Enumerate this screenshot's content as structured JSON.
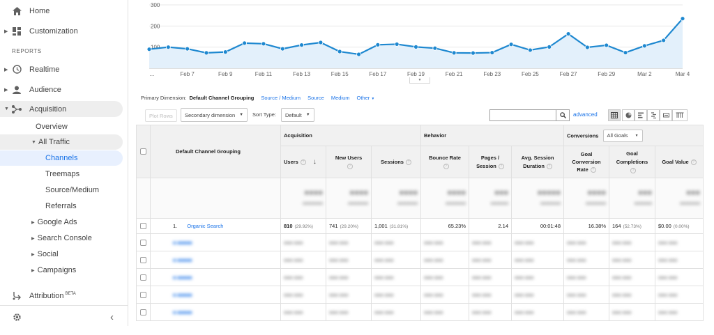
{
  "sidebar": {
    "home": "Home",
    "customization": "Customization",
    "reports_header": "REPORTS",
    "realtime": "Realtime",
    "audience": "Audience",
    "acquisition": "Acquisition",
    "overview": "Overview",
    "all_traffic": "All Traffic",
    "channels": "Channels",
    "treemaps": "Treemaps",
    "source_medium": "Source/Medium",
    "referrals": "Referrals",
    "google_ads": "Google Ads",
    "search_console": "Search Console",
    "social": "Social",
    "campaigns": "Campaigns",
    "attribution": "Attribution",
    "attribution_badge": "BETA",
    "collapse": "‹"
  },
  "chart_data": {
    "type": "area",
    "ylim": [
      0,
      300
    ],
    "yticks": [
      "300",
      "200",
      "100"
    ],
    "y_values": [
      90,
      100,
      92,
      73,
      77,
      119,
      116,
      92,
      110,
      122,
      79,
      66,
      111,
      114,
      101,
      95,
      73,
      72,
      74,
      113,
      86,
      101,
      163,
      99,
      109,
      74,
      106,
      132,
      235
    ],
    "xticks": [
      "…",
      "Feb 7",
      "Feb 9",
      "Feb 11",
      "Feb 13",
      "Feb 15",
      "Feb 17",
      "Feb 19",
      "Feb 21",
      "Feb 23",
      "Feb 25",
      "Feb 27",
      "Feb 29",
      "Mar 2",
      "Mar 4"
    ],
    "line_color": "#1e88d0",
    "fill_color": "#e3f0fb",
    "grid": true
  },
  "dimension": {
    "label": "Primary Dimension:",
    "current": "Default Channel Grouping",
    "options": [
      "Source / Medium",
      "Source",
      "Medium",
      "Other"
    ]
  },
  "toolbar": {
    "plot_rows": "Plot Rows",
    "secondary": "Secondary dimension",
    "sort_label": "Sort Type:",
    "sort_value": "Default",
    "advanced": "advanced"
  },
  "table": {
    "col_dimension": "Default Channel Grouping",
    "group_acquisition": "Acquisition",
    "group_behavior": "Behavior",
    "group_conversions": "Conversions",
    "goal_select": "All Goals",
    "cols": {
      "users": "Users",
      "new_users": "New Users",
      "sessions": "Sessions",
      "bounce": "Bounce Rate",
      "pages_1": "Pages /",
      "pages_2": "Session",
      "dur_1": "Avg. Session",
      "dur_2": "Duration",
      "gcr_1": "Goal",
      "gcr_2": "Conversion",
      "gcr_3": "Rate",
      "gc_1": "Goal",
      "gc_2": "Completions",
      "gv": "Goal Value"
    },
    "row1": {
      "index": "1.",
      "channel": "Organic Search",
      "users": "810",
      "users_pct": "(29.92%)",
      "new_users": "741",
      "new_users_pct": "(29.20%)",
      "sessions": "1,001",
      "sessions_pct": "(31.81%)",
      "bounce": "65.23%",
      "pages": "2.14",
      "duration": "00:01:48",
      "gcr": "16.38%",
      "gc": "164",
      "gc_pct": "(52.73%)",
      "gv": "$0.00",
      "gv_pct": "(0.00%)"
    }
  }
}
